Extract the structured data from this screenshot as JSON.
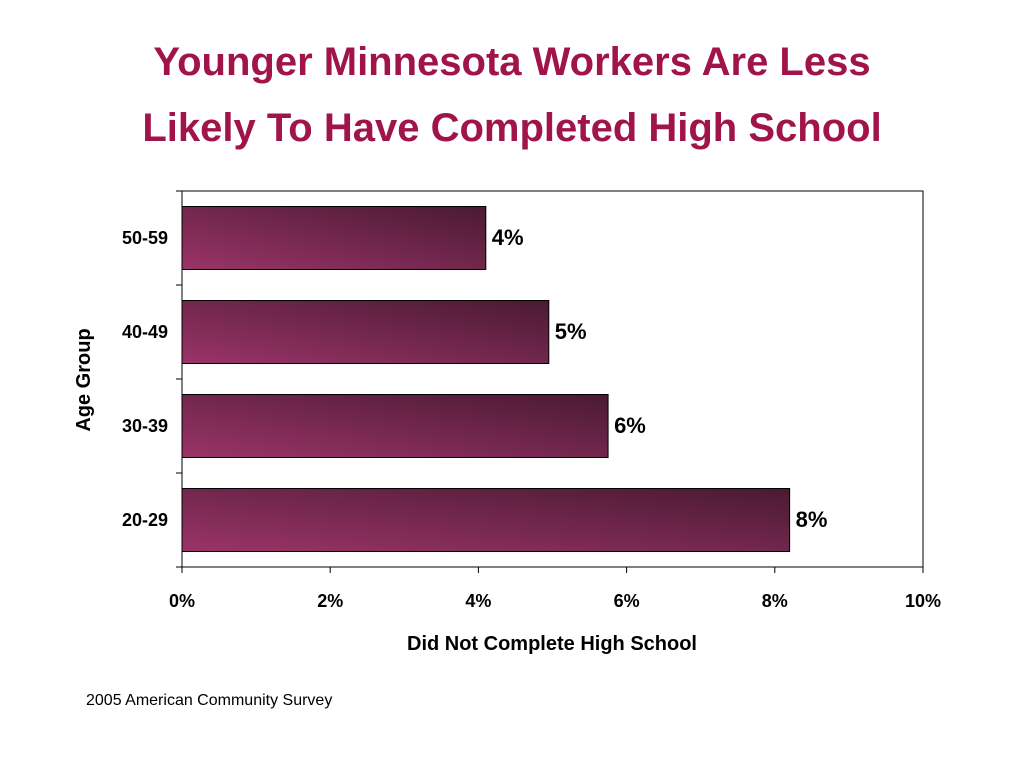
{
  "title": {
    "line1": "Younger Minnesota Workers Are Less",
    "line2": "Likely To Have Completed High School",
    "color": "#a0144a"
  },
  "source": "2005 American Community Survey",
  "chart_data": {
    "type": "bar",
    "orientation": "horizontal",
    "categories": [
      "50-59",
      "40-49",
      "30-39",
      "20-29"
    ],
    "values": [
      4.1,
      4.95,
      5.75,
      8.2
    ],
    "data_labels": [
      "4%",
      "5%",
      "6%",
      "8%"
    ],
    "xlabel": "Did Not Complete High School",
    "ylabel": "Age Group",
    "xlim": [
      0,
      10
    ],
    "xticks": [
      0,
      2,
      4,
      6,
      8,
      10
    ],
    "xtick_labels": [
      "0%",
      "2%",
      "4%",
      "6%",
      "8%",
      "10%"
    ],
    "grid": false,
    "bar_color_light": "#9a3468",
    "bar_color_dark": "#4a1a32"
  }
}
